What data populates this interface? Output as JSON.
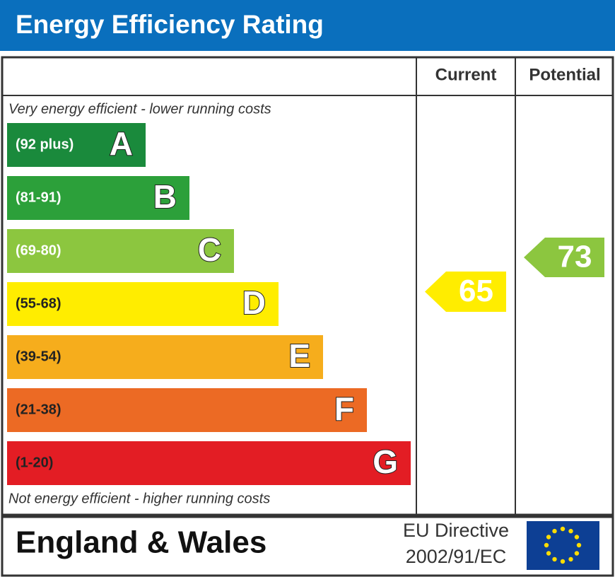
{
  "header": {
    "title": "Energy Efficiency Rating"
  },
  "columns": [
    "Current",
    "Potential"
  ],
  "top_note": "Very energy efficient - lower running costs",
  "bottom_note": "Not energy efficient - higher running costs",
  "bands": [
    {
      "range": "(92 plus)",
      "letter": "A",
      "color": "#1a8a3c"
    },
    {
      "range": "(81-91)",
      "letter": "B",
      "color": "#2ca03a"
    },
    {
      "range": "(69-80)",
      "letter": "C",
      "color": "#8cc63f"
    },
    {
      "range": "(55-68)",
      "letter": "D",
      "color": "#ffed00"
    },
    {
      "range": "(39-54)",
      "letter": "E",
      "color": "#f6ad1c"
    },
    {
      "range": "(21-38)",
      "letter": "F",
      "color": "#ec6a24"
    },
    {
      "range": "(1-20)",
      "letter": "G",
      "color": "#e31d24"
    }
  ],
  "current": {
    "value": 65,
    "color": "#ffed00"
  },
  "potential": {
    "value": 73,
    "color": "#8cc63f"
  },
  "footer": {
    "region": "England & Wales",
    "directive": [
      "EU Directive",
      "2002/91/EC"
    ]
  }
}
